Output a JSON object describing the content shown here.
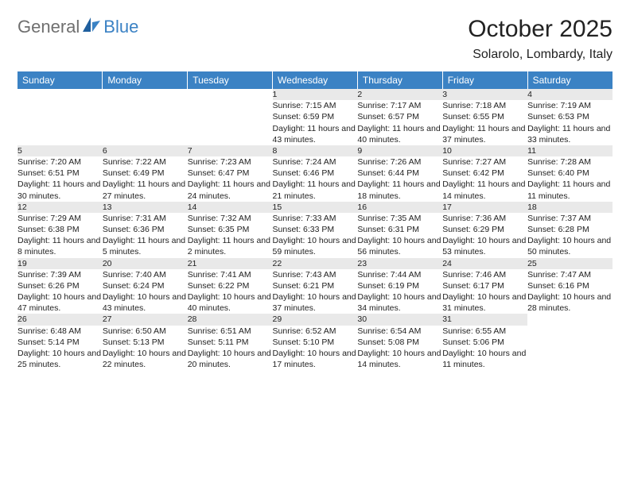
{
  "logo": {
    "general": "General",
    "blue": "Blue"
  },
  "title": "October 2025",
  "location": "Solarolo, Lombardy, Italy",
  "colors": {
    "header_bg": "#3b82c4",
    "header_text": "#ffffff",
    "daynum_bg": "#e9e9e9",
    "row_border": "#3b82c4",
    "body_text": "#222222",
    "logo_gray": "#6f6f6f",
    "logo_blue": "#3b82c4"
  },
  "typography": {
    "title_fontsize": 30,
    "location_fontsize": 16,
    "header_fontsize": 12,
    "daynum_fontsize": 11.5,
    "cell_fontsize": 10.5
  },
  "columns": [
    "Sunday",
    "Monday",
    "Tuesday",
    "Wednesday",
    "Thursday",
    "Friday",
    "Saturday"
  ],
  "weeks": [
    [
      {
        "n": "",
        "sr": "",
        "ss": "",
        "dl": ""
      },
      {
        "n": "",
        "sr": "",
        "ss": "",
        "dl": ""
      },
      {
        "n": "",
        "sr": "",
        "ss": "",
        "dl": ""
      },
      {
        "n": "1",
        "sr": "Sunrise: 7:15 AM",
        "ss": "Sunset: 6:59 PM",
        "dl": "Daylight: 11 hours and 43 minutes."
      },
      {
        "n": "2",
        "sr": "Sunrise: 7:17 AM",
        "ss": "Sunset: 6:57 PM",
        "dl": "Daylight: 11 hours and 40 minutes."
      },
      {
        "n": "3",
        "sr": "Sunrise: 7:18 AM",
        "ss": "Sunset: 6:55 PM",
        "dl": "Daylight: 11 hours and 37 minutes."
      },
      {
        "n": "4",
        "sr": "Sunrise: 7:19 AM",
        "ss": "Sunset: 6:53 PM",
        "dl": "Daylight: 11 hours and 33 minutes."
      }
    ],
    [
      {
        "n": "5",
        "sr": "Sunrise: 7:20 AM",
        "ss": "Sunset: 6:51 PM",
        "dl": "Daylight: 11 hours and 30 minutes."
      },
      {
        "n": "6",
        "sr": "Sunrise: 7:22 AM",
        "ss": "Sunset: 6:49 PM",
        "dl": "Daylight: 11 hours and 27 minutes."
      },
      {
        "n": "7",
        "sr": "Sunrise: 7:23 AM",
        "ss": "Sunset: 6:47 PM",
        "dl": "Daylight: 11 hours and 24 minutes."
      },
      {
        "n": "8",
        "sr": "Sunrise: 7:24 AM",
        "ss": "Sunset: 6:46 PM",
        "dl": "Daylight: 11 hours and 21 minutes."
      },
      {
        "n": "9",
        "sr": "Sunrise: 7:26 AM",
        "ss": "Sunset: 6:44 PM",
        "dl": "Daylight: 11 hours and 18 minutes."
      },
      {
        "n": "10",
        "sr": "Sunrise: 7:27 AM",
        "ss": "Sunset: 6:42 PM",
        "dl": "Daylight: 11 hours and 14 minutes."
      },
      {
        "n": "11",
        "sr": "Sunrise: 7:28 AM",
        "ss": "Sunset: 6:40 PM",
        "dl": "Daylight: 11 hours and 11 minutes."
      }
    ],
    [
      {
        "n": "12",
        "sr": "Sunrise: 7:29 AM",
        "ss": "Sunset: 6:38 PM",
        "dl": "Daylight: 11 hours and 8 minutes."
      },
      {
        "n": "13",
        "sr": "Sunrise: 7:31 AM",
        "ss": "Sunset: 6:36 PM",
        "dl": "Daylight: 11 hours and 5 minutes."
      },
      {
        "n": "14",
        "sr": "Sunrise: 7:32 AM",
        "ss": "Sunset: 6:35 PM",
        "dl": "Daylight: 11 hours and 2 minutes."
      },
      {
        "n": "15",
        "sr": "Sunrise: 7:33 AM",
        "ss": "Sunset: 6:33 PM",
        "dl": "Daylight: 10 hours and 59 minutes."
      },
      {
        "n": "16",
        "sr": "Sunrise: 7:35 AM",
        "ss": "Sunset: 6:31 PM",
        "dl": "Daylight: 10 hours and 56 minutes."
      },
      {
        "n": "17",
        "sr": "Sunrise: 7:36 AM",
        "ss": "Sunset: 6:29 PM",
        "dl": "Daylight: 10 hours and 53 minutes."
      },
      {
        "n": "18",
        "sr": "Sunrise: 7:37 AM",
        "ss": "Sunset: 6:28 PM",
        "dl": "Daylight: 10 hours and 50 minutes."
      }
    ],
    [
      {
        "n": "19",
        "sr": "Sunrise: 7:39 AM",
        "ss": "Sunset: 6:26 PM",
        "dl": "Daylight: 10 hours and 47 minutes."
      },
      {
        "n": "20",
        "sr": "Sunrise: 7:40 AM",
        "ss": "Sunset: 6:24 PM",
        "dl": "Daylight: 10 hours and 43 minutes."
      },
      {
        "n": "21",
        "sr": "Sunrise: 7:41 AM",
        "ss": "Sunset: 6:22 PM",
        "dl": "Daylight: 10 hours and 40 minutes."
      },
      {
        "n": "22",
        "sr": "Sunrise: 7:43 AM",
        "ss": "Sunset: 6:21 PM",
        "dl": "Daylight: 10 hours and 37 minutes."
      },
      {
        "n": "23",
        "sr": "Sunrise: 7:44 AM",
        "ss": "Sunset: 6:19 PM",
        "dl": "Daylight: 10 hours and 34 minutes."
      },
      {
        "n": "24",
        "sr": "Sunrise: 7:46 AM",
        "ss": "Sunset: 6:17 PM",
        "dl": "Daylight: 10 hours and 31 minutes."
      },
      {
        "n": "25",
        "sr": "Sunrise: 7:47 AM",
        "ss": "Sunset: 6:16 PM",
        "dl": "Daylight: 10 hours and 28 minutes."
      }
    ],
    [
      {
        "n": "26",
        "sr": "Sunrise: 6:48 AM",
        "ss": "Sunset: 5:14 PM",
        "dl": "Daylight: 10 hours and 25 minutes."
      },
      {
        "n": "27",
        "sr": "Sunrise: 6:50 AM",
        "ss": "Sunset: 5:13 PM",
        "dl": "Daylight: 10 hours and 22 minutes."
      },
      {
        "n": "28",
        "sr": "Sunrise: 6:51 AM",
        "ss": "Sunset: 5:11 PM",
        "dl": "Daylight: 10 hours and 20 minutes."
      },
      {
        "n": "29",
        "sr": "Sunrise: 6:52 AM",
        "ss": "Sunset: 5:10 PM",
        "dl": "Daylight: 10 hours and 17 minutes."
      },
      {
        "n": "30",
        "sr": "Sunrise: 6:54 AM",
        "ss": "Sunset: 5:08 PM",
        "dl": "Daylight: 10 hours and 14 minutes."
      },
      {
        "n": "31",
        "sr": "Sunrise: 6:55 AM",
        "ss": "Sunset: 5:06 PM",
        "dl": "Daylight: 10 hours and 11 minutes."
      },
      {
        "n": "",
        "sr": "",
        "ss": "",
        "dl": ""
      }
    ]
  ]
}
